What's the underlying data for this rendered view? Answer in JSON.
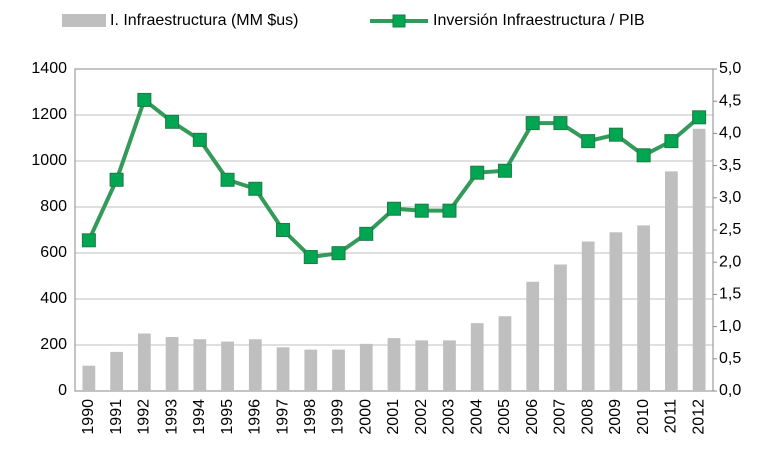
{
  "chart_data": {
    "type": "bar_line",
    "categories": [
      "1990",
      "1991",
      "1992",
      "1993",
      "1994",
      "1995",
      "1996",
      "1997",
      "1998",
      "1999",
      "2000",
      "2001",
      "2002",
      "2003",
      "2004",
      "2005",
      "2006",
      "2007",
      "2008",
      "2009",
      "2010",
      "2011",
      "2012"
    ],
    "series": [
      {
        "name": "I. Infraestructura (MM $us)",
        "type": "bar",
        "color": "#bfbfbf",
        "values": [
          110,
          170,
          250,
          235,
          225,
          215,
          225,
          190,
          180,
          180,
          205,
          230,
          220,
          220,
          295,
          325,
          475,
          550,
          650,
          690,
          720,
          955,
          1140
        ]
      },
      {
        "name": "Inversión Infraestructura / PIB",
        "type": "line",
        "axis": "y2",
        "color": "#339a5a",
        "marker_color": "#00a651",
        "values": [
          2.34,
          3.28,
          4.52,
          4.18,
          3.9,
          3.28,
          3.14,
          2.5,
          2.08,
          2.14,
          2.44,
          2.83,
          2.8,
          2.8,
          3.39,
          3.42,
          4.16,
          4.16,
          3.88,
          3.98,
          3.66,
          3.88,
          4.25
        ]
      }
    ],
    "ylim": [
      0,
      1400
    ],
    "yticks": [
      0,
      200,
      400,
      600,
      800,
      1000,
      1200,
      1400
    ],
    "y2lim": [
      0,
      5
    ],
    "y2ticks": [
      {
        "value": 0,
        "label": "0,0"
      },
      {
        "value": 0.5,
        "label": "0,5"
      },
      {
        "value": 1,
        "label": "1,0"
      },
      {
        "value": 1.5,
        "label": "1,5"
      },
      {
        "value": 2,
        "label": "2,0"
      },
      {
        "value": 2.5,
        "label": "2,5"
      },
      {
        "value": 3,
        "label": "3,0"
      },
      {
        "value": 3.5,
        "label": "3,5"
      },
      {
        "value": 4,
        "label": "4,0"
      },
      {
        "value": 4.5,
        "label": "4,5"
      },
      {
        "value": 5,
        "label": "5,0"
      }
    ],
    "grid": true,
    "legend": "top"
  }
}
